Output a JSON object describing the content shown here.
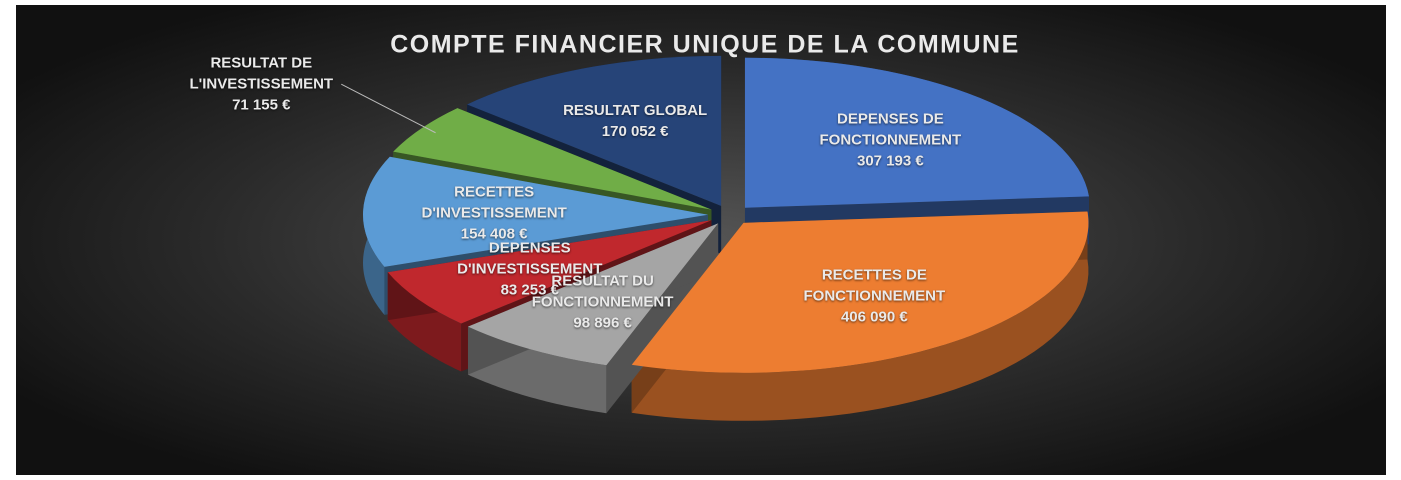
{
  "chart_data": {
    "type": "pie3d",
    "title": "COMPTE FINANCIER UNIQUE DE LA COMMUNE",
    "categories": [
      "DEPENSES DE FONCTIONNEMENT",
      "RECETTES DE FONCTIONNEMENT",
      "RESULTAT DU FONCTIONNEMENT",
      "DEPENSES D'INVESTISSEMENT",
      "RECETTES D'INVESTISSEMENT",
      "RESULTAT DE L'INVESTISSEMENT",
      "RESULTAT GLOBAL"
    ],
    "values": [
      307193,
      406090,
      98896,
      83253,
      154408,
      71155,
      170052
    ],
    "value_labels": [
      "307 193 €",
      "406 090 €",
      "98 896 €",
      "83 253 €",
      "154 408 €",
      "71 155 €",
      "170 052 €"
    ],
    "colors": [
      "#4472c4",
      "#ed7d31",
      "#a5a5a5",
      "#c0282d",
      "#5b9bd5",
      "#70ad47",
      "#264478"
    ]
  }
}
